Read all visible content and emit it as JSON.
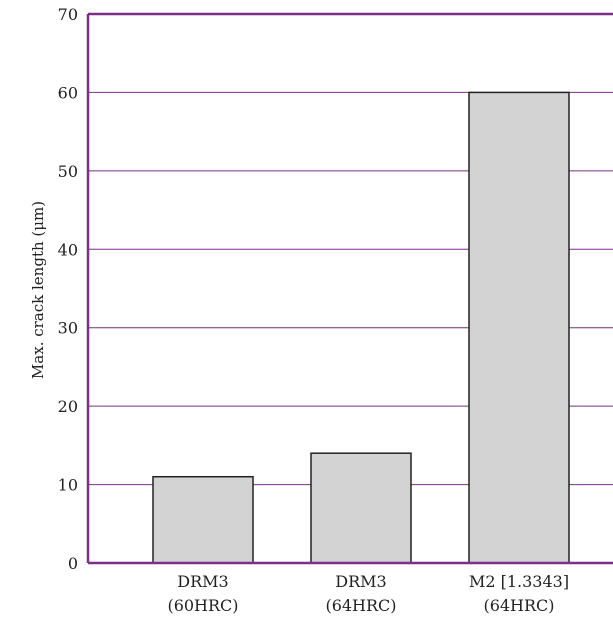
{
  "chart_data": {
    "type": "bar",
    "categories": [
      [
        "DRM3",
        "(60HRC)"
      ],
      [
        "DRM3",
        "(64HRC)"
      ],
      [
        "M2 [1.3343]",
        "(64HRC)"
      ]
    ],
    "values": [
      11,
      14,
      60
    ],
    "title": "",
    "xlabel": "",
    "ylabel": "Max. crack length (μm)",
    "ylim": [
      0,
      70
    ],
    "yticks": [
      0,
      10,
      20,
      30,
      40,
      50,
      60,
      70
    ],
    "grid": true,
    "legend": "none"
  },
  "colors": {
    "frame": "#7b2f86",
    "grid": "#7b2f86",
    "bar_fill": "#d3d3d3",
    "bar_stroke": "#222222",
    "text": "#222222"
  }
}
